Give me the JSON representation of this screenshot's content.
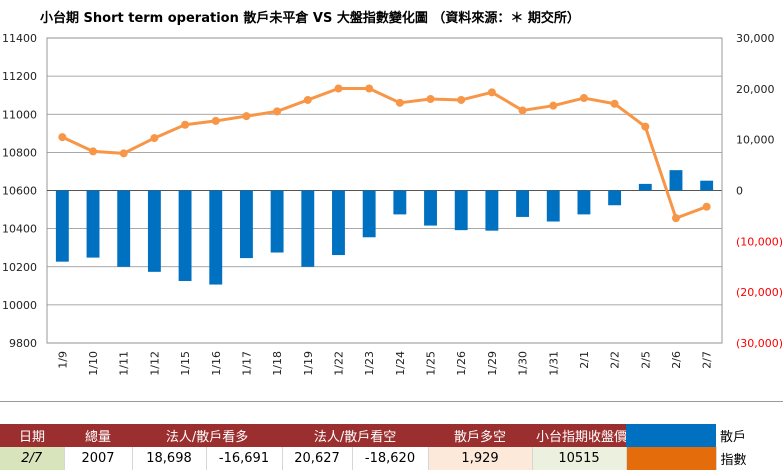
{
  "chart_data": {
    "type": "bar+line",
    "title": "小台期 Short term operation 散戶未平倉 VS 大盤指數變化圖 （資料來源：＊ 期交所）",
    "categories": [
      "1/9",
      "1/10",
      "1/11",
      "1/12",
      "1/15",
      "1/16",
      "1/17",
      "1/18",
      "1/19",
      "1/22",
      "1/23",
      "1/24",
      "1/25",
      "1/26",
      "1/29",
      "1/30",
      "1/31",
      "2/1",
      "2/2",
      "2/5",
      "2/6",
      "2/7"
    ],
    "left_axis": {
      "ticks": [
        "11400",
        "11200",
        "11000",
        "10800",
        "10600",
        "10400",
        "10200",
        "10000",
        "9800"
      ],
      "ylim": [
        9800,
        11400
      ]
    },
    "right_axis": {
      "ticks": [
        "30,000",
        "20,000",
        "10,000",
        "0",
        "(10,000)",
        "(20,000)",
        "(30,000)"
      ],
      "ylim": [
        -30000,
        30000
      ]
    },
    "series": [
      {
        "type": "bar",
        "axis": "right",
        "color": "#0070c0",
        "values": [
          -14000,
          -13200,
          -15000,
          -16000,
          -17800,
          -18500,
          -13300,
          -12200,
          -15000,
          -12700,
          -9200,
          -4700,
          -6900,
          -7800,
          -7900,
          -5200,
          -6100,
          -4700,
          -2900,
          1300,
          4000,
          1929
        ]
      },
      {
        "type": "line",
        "axis": "left",
        "color": "#f79646",
        "values": [
          10880,
          10805,
          10795,
          10875,
          10945,
          10965,
          10990,
          11015,
          11075,
          11135,
          11135,
          11060,
          11080,
          11075,
          11115,
          11020,
          11045,
          11085,
          11055,
          10935,
          10455,
          10515
        ]
      }
    ],
    "grid": true,
    "legend": "bottom-right"
  },
  "table": {
    "headers": [
      "日期",
      "總量",
      "法人/散戶看多",
      "法人/散戶看空",
      "散戶多空",
      "小台指期收盤價"
    ],
    "row": [
      "2/7",
      "2007",
      "18,698",
      "-16,691",
      "20,627",
      "-18,620",
      "1,929",
      "10515"
    ],
    "legend": [
      {
        "label": "散戶",
        "color": "#0070c0"
      },
      {
        "label": "指數",
        "color": "#e46c0a"
      }
    ]
  },
  "colors": {
    "header_bg": "#9b2f2f",
    "negative_tick": "#ff0000"
  }
}
